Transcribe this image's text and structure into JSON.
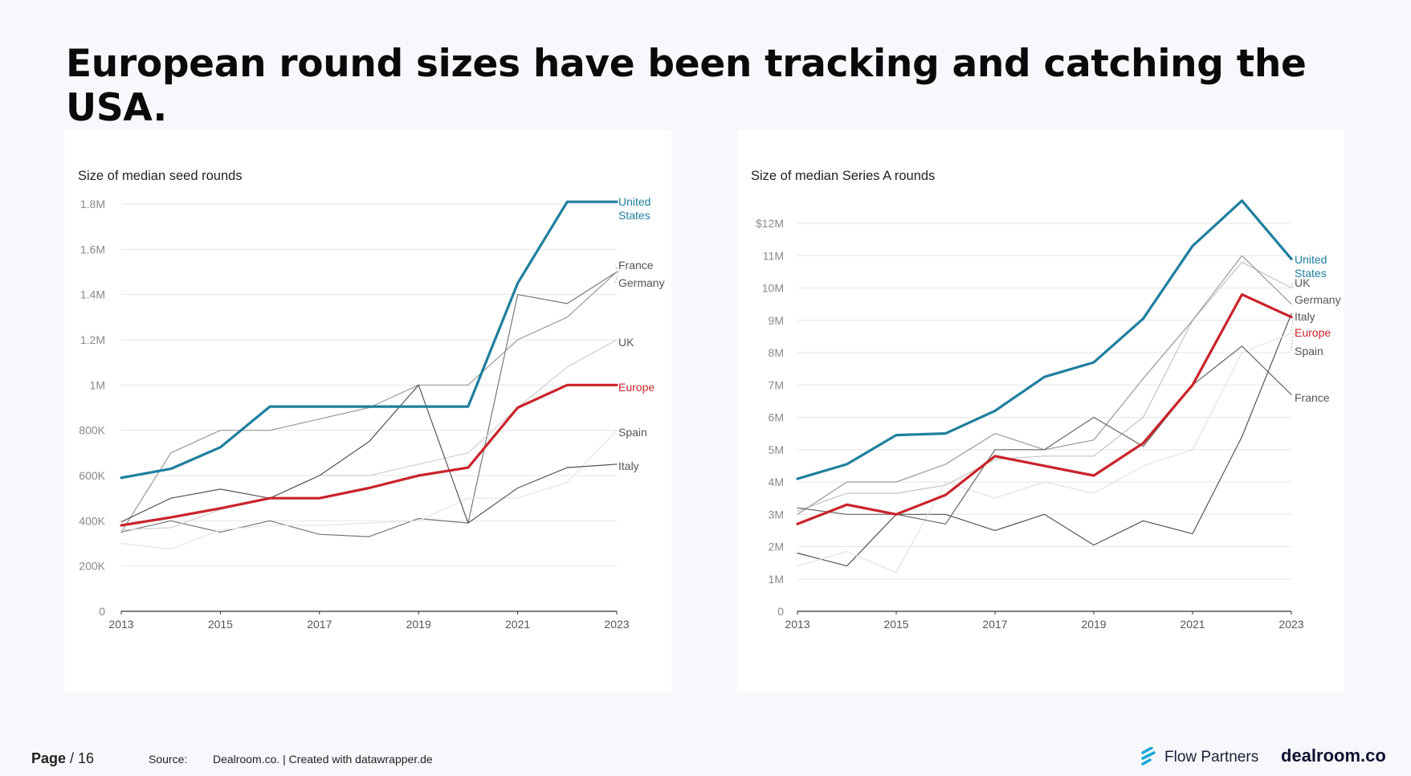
{
  "title": "European round sizes have been tracking and catching the USA.",
  "footer": {
    "page_word": "Page",
    "page_num": "/ 16",
    "source_label": "Source:",
    "source_text": "Dealroom.co. | Created with datawrapper.de",
    "logo_flow": "Flow Partners",
    "logo_dealroom": "dealroom.co"
  },
  "colors": {
    "us": "#1f7f9e",
    "europe": "#c9242a",
    "grid": "#e6e6e6",
    "axis_text": "#888888"
  },
  "chart_data": [
    {
      "type": "line",
      "title": "Size of median seed rounds",
      "x": [
        2013,
        2014,
        2015,
        2016,
        2017,
        2018,
        2019,
        2020,
        2021,
        2022,
        2023
      ],
      "x_ticks": [
        "2013",
        "2015",
        "2017",
        "2019",
        "2021",
        "2023"
      ],
      "ylim": [
        0,
        1800000
      ],
      "y_ticks": [
        0,
        200000,
        400000,
        600000,
        800000,
        1000000,
        1200000,
        1400000,
        1600000,
        1800000
      ],
      "y_tick_labels": [
        "0",
        "200K",
        "400K",
        "600K",
        "800K",
        "1M",
        "1.2M",
        "1.4M",
        "1.6M",
        "1.8M"
      ],
      "series": [
        {
          "name": "United States",
          "color": "#1f7f9e",
          "width": 3.2,
          "values": [
            590000,
            630000,
            725000,
            905000,
            905000,
            905000,
            905000,
            905000,
            1450000,
            1810000,
            1810000
          ]
        },
        {
          "name": "France",
          "color": "#777777",
          "width": 1.2,
          "values": [
            350000,
            400000,
            350000,
            400000,
            340000,
            330000,
            410000,
            390000,
            1400000,
            1360000,
            1500000
          ]
        },
        {
          "name": "Germany",
          "color": "#999999",
          "width": 1.2,
          "values": [
            350000,
            700000,
            800000,
            800000,
            850000,
            900000,
            1000000,
            1000000,
            1200000,
            1300000,
            1500000
          ]
        },
        {
          "name": "UK",
          "color": "#cfcfcf",
          "width": 1.2,
          "values": [
            360000,
            370000,
            450000,
            500000,
            600000,
            600000,
            650000,
            700000,
            900000,
            1080000,
            1200000
          ]
        },
        {
          "name": "Europe",
          "color": "#c9242a",
          "width": 3.2,
          "values": [
            380000,
            415000,
            455000,
            500000,
            500000,
            545000,
            600000,
            635000,
            900000,
            1000000,
            1000000
          ]
        },
        {
          "name": "Spain",
          "color": "#e4e4e4",
          "width": 1.2,
          "values": [
            300000,
            275000,
            360000,
            380000,
            380000,
            390000,
            400000,
            500000,
            500000,
            570000,
            800000
          ]
        },
        {
          "name": "Italy",
          "color": "#555555",
          "width": 1.2,
          "values": [
            395000,
            500000,
            540000,
            500000,
            600000,
            750000,
            1000000,
            390000,
            545000,
            635000,
            650000
          ]
        }
      ],
      "labels": [
        {
          "lines": [
            "United",
            "States"
          ],
          "series": "United States"
        },
        {
          "lines": [
            "France"
          ],
          "series": "France"
        },
        {
          "lines": [
            "Germany"
          ],
          "series": "Germany"
        },
        {
          "lines": [
            "UK"
          ],
          "series": "UK"
        },
        {
          "lines": [
            "Europe"
          ],
          "series": "Europe"
        },
        {
          "lines": [
            "Spain"
          ],
          "series": "Spain"
        },
        {
          "lines": [
            "Italy"
          ],
          "series": "Italy"
        }
      ]
    },
    {
      "type": "line",
      "title": "Size of median Series A rounds",
      "x": [
        2013,
        2014,
        2015,
        2016,
        2017,
        2018,
        2019,
        2020,
        2021,
        2022,
        2023
      ],
      "x_ticks": [
        "2013",
        "2015",
        "2017",
        "2019",
        "2021",
        "2023"
      ],
      "ylim": [
        0,
        12000000
      ],
      "y_ticks": [
        0,
        1000000,
        2000000,
        3000000,
        4000000,
        5000000,
        6000000,
        7000000,
        8000000,
        9000000,
        10000000,
        11000000,
        12000000
      ],
      "y_tick_labels": [
        "0",
        "1M",
        "2M",
        "3M",
        "4M",
        "5M",
        "6M",
        "7M",
        "8M",
        "9M",
        "10M",
        "11M",
        "$12M"
      ],
      "series": [
        {
          "name": "United States",
          "color": "#1f7f9e",
          "width": 3.2,
          "values": [
            4100000,
            4550000,
            5450000,
            5500000,
            6200000,
            7250000,
            7700000,
            9050000,
            11300000,
            12700000,
            10900000
          ]
        },
        {
          "name": "UK",
          "color": "#c4c4c4",
          "width": 1.2,
          "values": [
            3100000,
            3650000,
            3650000,
            3900000,
            4700000,
            4800000,
            4800000,
            6000000,
            9000000,
            10800000,
            10000000
          ]
        },
        {
          "name": "Germany",
          "color": "#999999",
          "width": 1.2,
          "values": [
            3000000,
            4000000,
            4000000,
            4550000,
            5500000,
            5000000,
            5300000,
            7200000,
            9000000,
            11000000,
            9500000
          ]
        },
        {
          "name": "Italy",
          "color": "#555555",
          "width": 1.2,
          "values": [
            1800000,
            1400000,
            3000000,
            3000000,
            2500000,
            3000000,
            2050000,
            2800000,
            2400000,
            5400000,
            9200000
          ]
        },
        {
          "name": "Europe",
          "color": "#c9242a",
          "width": 3.2,
          "values": [
            2700000,
            3300000,
            3000000,
            3600000,
            4800000,
            4500000,
            4200000,
            5200000,
            7000000,
            9800000,
            9100000
          ]
        },
        {
          "name": "Spain",
          "color": "#e2e2e2",
          "width": 1.2,
          "values": [
            1400000,
            1850000,
            1200000,
            4000000,
            3500000,
            4000000,
            3650000,
            4500000,
            5000000,
            8000000,
            8600000
          ]
        },
        {
          "name": "France",
          "color": "#666666",
          "width": 1.2,
          "values": [
            3200000,
            3000000,
            3000000,
            2700000,
            5000000,
            5000000,
            6000000,
            5100000,
            7000000,
            8200000,
            6700000
          ]
        }
      ],
      "labels": [
        {
          "lines": [
            "United",
            "States"
          ],
          "series": "United States"
        },
        {
          "lines": [
            "UK"
          ],
          "series": "UK"
        },
        {
          "lines": [
            "Germany"
          ],
          "series": "Germany"
        },
        {
          "lines": [
            "Italy"
          ],
          "series": "Italy"
        },
        {
          "lines": [
            "Europe"
          ],
          "series": "Europe"
        },
        {
          "lines": [
            "Spain"
          ],
          "series": "Spain"
        },
        {
          "lines": [
            "France"
          ],
          "series": "France"
        }
      ]
    }
  ]
}
